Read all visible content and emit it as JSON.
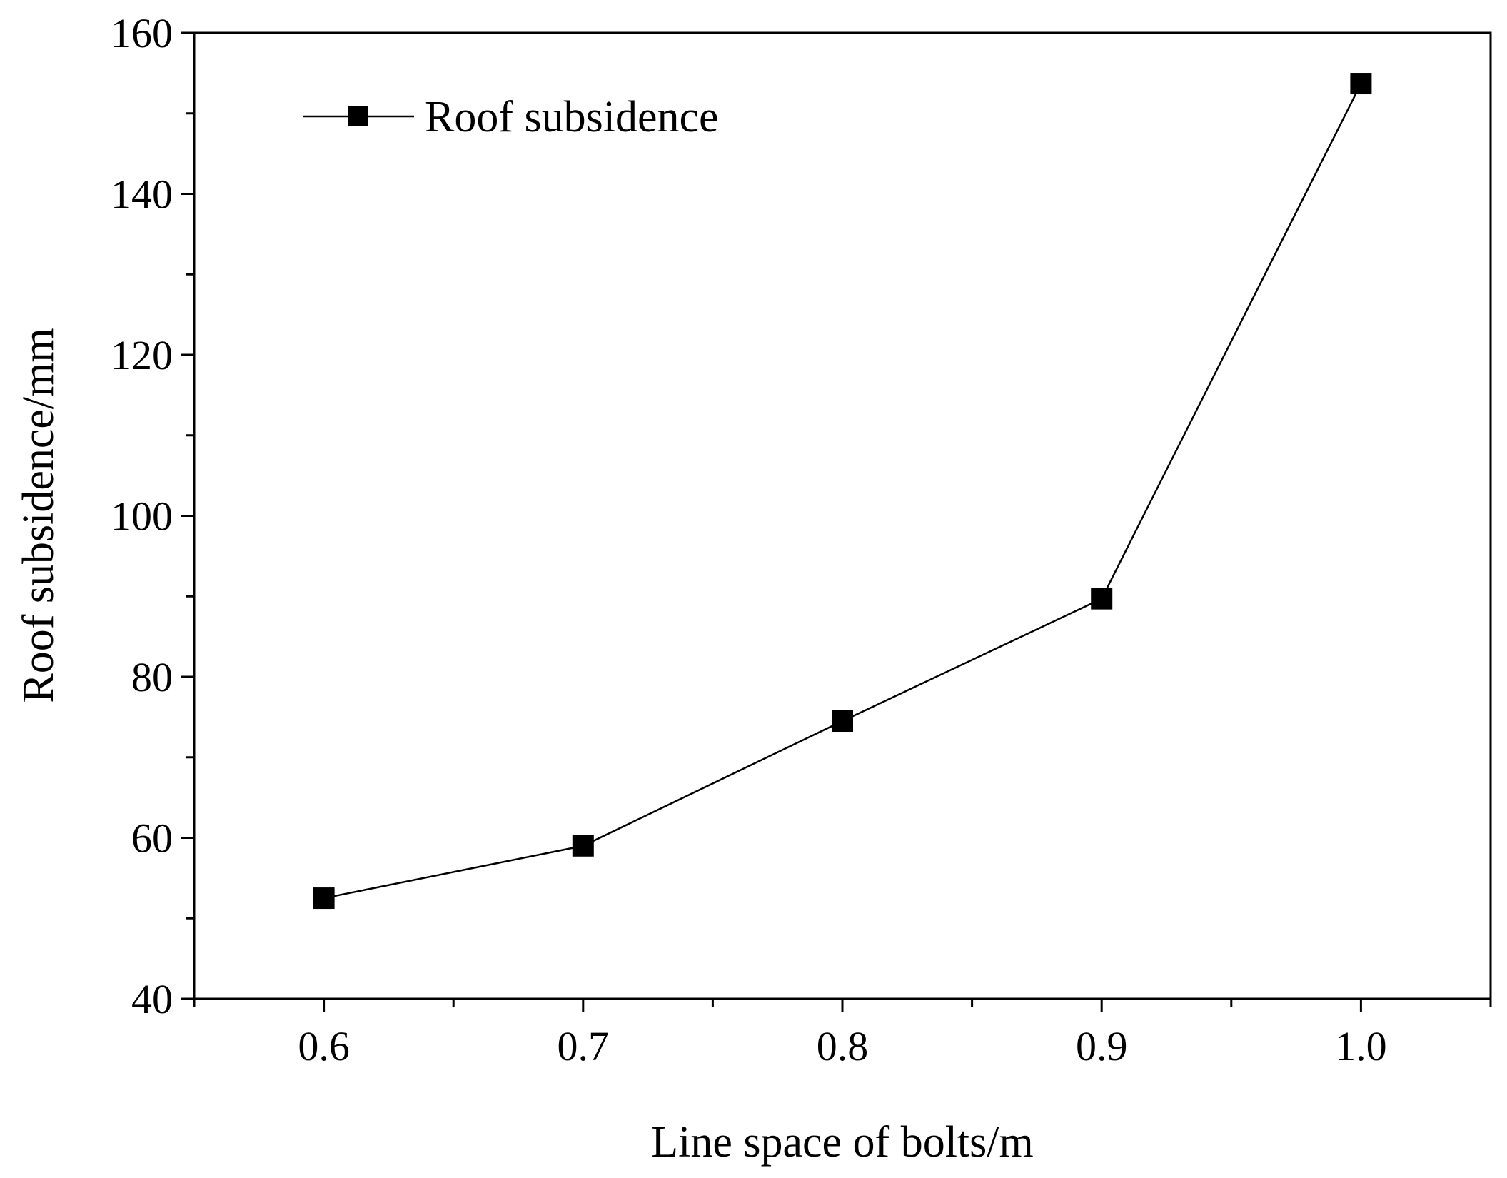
{
  "chart_data": {
    "type": "line",
    "title": "",
    "xlabel": "Line space of bolts/m",
    "ylabel": "Roof subsidence/mm",
    "xlim": [
      0.55,
      1.05
    ],
    "ylim": [
      40,
      160
    ],
    "xticks": [
      0.6,
      0.7,
      0.8,
      0.9,
      1.0
    ],
    "xtick_labels": [
      "0.6",
      "0.7",
      "0.8",
      "0.9",
      "1.0"
    ],
    "xminor_ticks": [
      0.55,
      0.65,
      0.75,
      0.85,
      0.95,
      1.05
    ],
    "yticks": [
      40,
      60,
      80,
      100,
      120,
      140,
      160
    ],
    "ytick_labels": [
      "40",
      "60",
      "80",
      "100",
      "120",
      "140",
      "160"
    ],
    "yminor_ticks": [
      50,
      70,
      90,
      110,
      130,
      150
    ],
    "grid": false,
    "legend_position": "top-left",
    "series": [
      {
        "name": "Roof subsidence",
        "marker": "square",
        "color": "#000000",
        "x": [
          0.6,
          0.7,
          0.8,
          0.9,
          1.0
        ],
        "values": [
          52.5,
          59.0,
          74.5,
          89.7,
          153.7
        ]
      }
    ]
  }
}
